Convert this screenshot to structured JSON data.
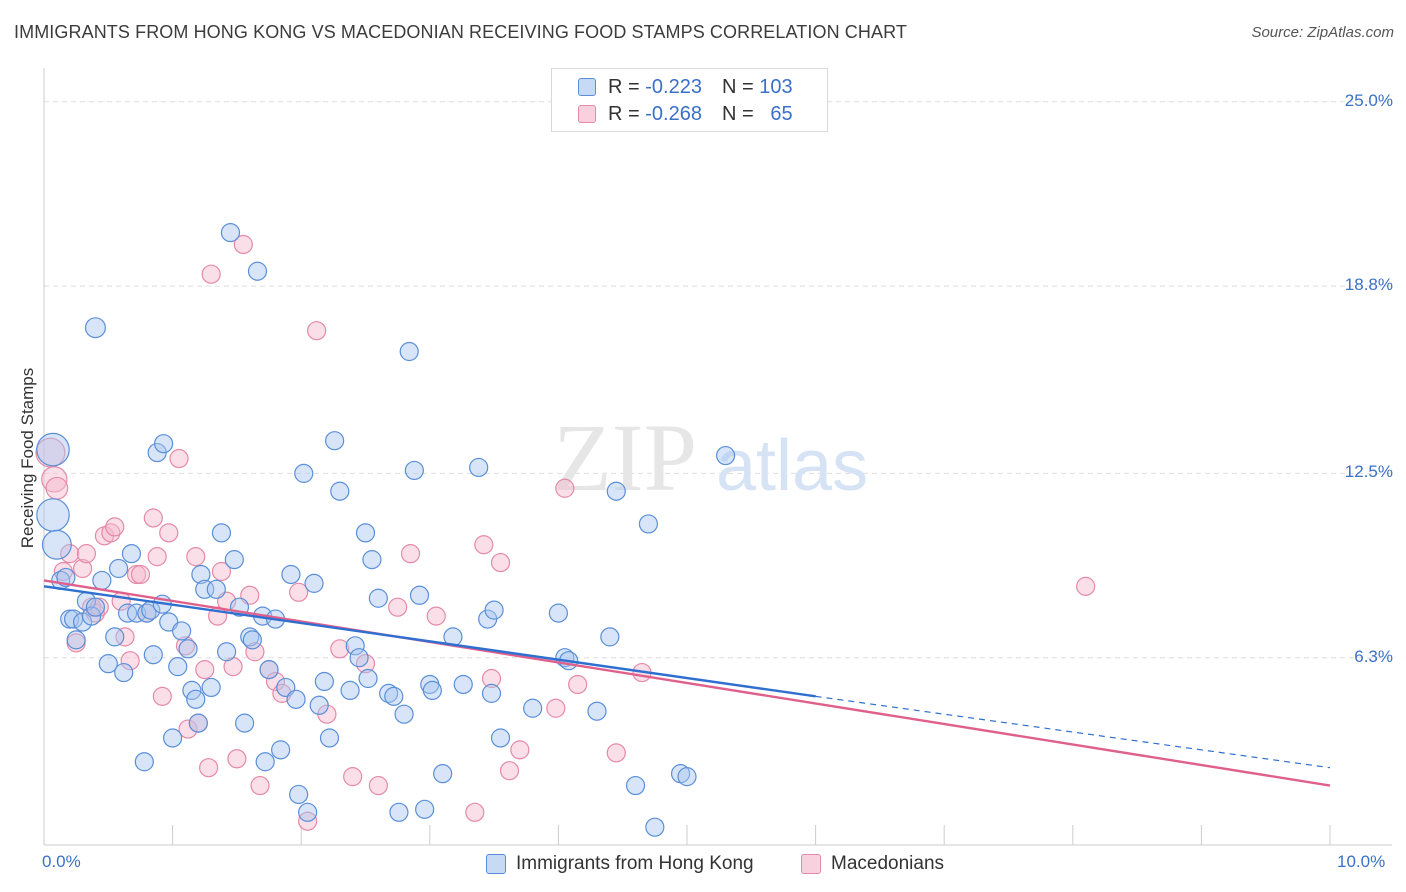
{
  "title": "IMMIGRANTS FROM HONG KONG VS MACEDONIAN RECEIVING FOOD STAMPS CORRELATION CHART",
  "source": "Source: ZipAtlas.com",
  "watermark": {
    "zip": "ZIP",
    "atlas": "atlas"
  },
  "legend": {
    "r_label": "R =",
    "n_label": "N =",
    "series1": {
      "r": "-0.223",
      "n": "103"
    },
    "series2": {
      "r": "-0.268",
      "n": "65"
    }
  },
  "bottom_legend": {
    "series1": "Immigrants from Hong Kong",
    "series2": "Macedonians"
  },
  "colors": {
    "series1_fill": "#a9c6ef",
    "series1_stroke": "#5a8fd8",
    "series1_line": "#2f6fd0",
    "series2_fill": "#f5b8cb",
    "series2_stroke": "#e58aa7",
    "series2_line": "#e0608c",
    "tick_label": "#3a70c8",
    "grid": "#dddddd"
  },
  "chart_data": {
    "type": "scatter",
    "title": "IMMIGRANTS FROM HONG KONG VS MACEDONIAN RECEIVING FOOD STAMPS CORRELATION CHART",
    "xlabel": "",
    "ylabel": "Receiving Food Stamps",
    "xlim": [
      0,
      10
    ],
    "ylim": [
      0,
      25.8
    ],
    "x_tick_labels": [
      {
        "value": 0,
        "label": "0.0%"
      },
      {
        "value": 10,
        "label": "10.0%"
      }
    ],
    "y_ticks": [
      {
        "value": 6.3,
        "label": "6.3%"
      },
      {
        "value": 12.5,
        "label": "12.5%"
      },
      {
        "value": 18.8,
        "label": "18.8%"
      },
      {
        "value": 25.0,
        "label": "25.0%"
      }
    ],
    "grid": true,
    "legend_position": "top-center",
    "series": [
      {
        "name": "Immigrants from Hong Kong",
        "r": -0.223,
        "n": 103,
        "trend": {
          "x0": 0,
          "y0": 8.7,
          "x1": 6.0,
          "y1": 5.0,
          "dashed_to_x": 10,
          "dashed_to_y": 2.6
        },
        "points": [
          [
            0.07,
            13.3,
            1.8
          ],
          [
            0.07,
            11.1,
            1.8
          ],
          [
            0.1,
            10.1,
            1.6
          ],
          [
            0.13,
            8.9,
            1
          ],
          [
            0.17,
            9.0,
            1
          ],
          [
            0.2,
            7.6,
            1
          ],
          [
            0.23,
            7.6,
            1
          ],
          [
            0.25,
            6.9,
            1
          ],
          [
            0.3,
            7.5,
            1
          ],
          [
            0.33,
            8.2,
            1
          ],
          [
            0.37,
            7.7,
            1
          ],
          [
            0.4,
            8.0,
            1
          ],
          [
            0.45,
            8.9,
            1
          ],
          [
            0.5,
            6.1,
            1
          ],
          [
            0.55,
            7.0,
            1
          ],
          [
            0.58,
            9.3,
            1
          ],
          [
            0.62,
            5.8,
            1
          ],
          [
            0.65,
            7.8,
            1
          ],
          [
            0.68,
            9.8,
            1
          ],
          [
            0.72,
            7.8,
            1
          ],
          [
            0.78,
            2.8,
            1
          ],
          [
            0.8,
            7.8,
            1
          ],
          [
            0.83,
            7.9,
            1
          ],
          [
            0.85,
            6.4,
            1
          ],
          [
            0.88,
            13.2,
            1
          ],
          [
            0.92,
            8.1,
            1
          ],
          [
            0.93,
            13.5,
            1
          ],
          [
            0.97,
            7.5,
            1
          ],
          [
            1.0,
            3.6,
            1
          ],
          [
            1.04,
            6.0,
            1
          ],
          [
            1.07,
            7.2,
            1
          ],
          [
            1.12,
            6.6,
            1
          ],
          [
            1.15,
            5.2,
            1
          ],
          [
            1.18,
            4.9,
            1
          ],
          [
            1.2,
            4.1,
            1
          ],
          [
            1.22,
            9.1,
            1
          ],
          [
            1.25,
            8.6,
            1
          ],
          [
            1.3,
            5.3,
            1
          ],
          [
            1.34,
            8.6,
            1
          ],
          [
            1.38,
            10.5,
            1
          ],
          [
            1.42,
            6.5,
            1
          ],
          [
            1.45,
            20.6,
            1
          ],
          [
            1.48,
            9.6,
            1
          ],
          [
            1.52,
            8.0,
            1
          ],
          [
            1.56,
            4.1,
            1
          ],
          [
            1.6,
            7.0,
            1
          ],
          [
            1.62,
            6.9,
            1
          ],
          [
            1.66,
            19.3,
            1
          ],
          [
            1.7,
            7.7,
            1
          ],
          [
            1.72,
            2.8,
            1
          ],
          [
            1.75,
            5.9,
            1
          ],
          [
            1.8,
            7.6,
            1
          ],
          [
            1.84,
            3.2,
            1
          ],
          [
            1.88,
            5.3,
            1
          ],
          [
            1.92,
            9.1,
            1
          ],
          [
            1.96,
            4.9,
            1
          ],
          [
            1.98,
            1.7,
            1
          ],
          [
            2.02,
            12.5,
            1
          ],
          [
            2.05,
            1.1,
            1
          ],
          [
            2.1,
            8.8,
            1
          ],
          [
            2.14,
            4.7,
            1
          ],
          [
            2.18,
            5.5,
            1
          ],
          [
            2.22,
            3.6,
            1
          ],
          [
            2.26,
            13.6,
            1
          ],
          [
            2.3,
            11.9,
            1
          ],
          [
            2.38,
            5.2,
            1
          ],
          [
            2.42,
            6.7,
            1
          ],
          [
            2.45,
            6.3,
            1
          ],
          [
            2.5,
            10.5,
            1
          ],
          [
            2.52,
            5.6,
            1
          ],
          [
            2.55,
            9.6,
            1
          ],
          [
            2.6,
            8.3,
            1
          ],
          [
            2.68,
            5.1,
            1
          ],
          [
            2.72,
            5.0,
            1
          ],
          [
            2.76,
            1.1,
            1
          ],
          [
            2.8,
            4.4,
            1
          ],
          [
            2.84,
            16.6,
            1
          ],
          [
            2.88,
            12.6,
            1
          ],
          [
            2.92,
            8.4,
            1
          ],
          [
            2.96,
            1.2,
            1
          ],
          [
            3.0,
            5.4,
            1
          ],
          [
            3.02,
            5.2,
            1
          ],
          [
            3.1,
            2.4,
            1
          ],
          [
            3.18,
            7.0,
            1
          ],
          [
            3.26,
            5.4,
            1
          ],
          [
            3.38,
            12.7,
            1
          ],
          [
            3.45,
            7.6,
            1
          ],
          [
            3.48,
            5.1,
            1
          ],
          [
            3.5,
            7.9,
            1
          ],
          [
            3.55,
            3.6,
            1
          ],
          [
            3.8,
            4.6,
            1
          ],
          [
            4.0,
            7.8,
            1
          ],
          [
            4.05,
            6.3,
            1
          ],
          [
            4.08,
            6.2,
            1
          ],
          [
            4.3,
            4.5,
            1
          ],
          [
            4.4,
            7.0,
            1
          ],
          [
            4.45,
            11.9,
            1
          ],
          [
            4.6,
            2.0,
            1
          ],
          [
            4.7,
            10.8,
            1
          ],
          [
            4.75,
            0.6,
            1
          ],
          [
            4.95,
            2.4,
            1
          ],
          [
            5.0,
            2.3,
            1
          ],
          [
            5.3,
            13.1,
            1
          ],
          [
            0.4,
            17.4,
            1.1
          ]
        ]
      },
      {
        "name": "Macedonians",
        "r": -0.268,
        "n": 65,
        "trend": {
          "x0": 0,
          "y0": 8.9,
          "x1": 10,
          "y1": 2.0
        },
        "points": [
          [
            0.05,
            13.2,
            1.6
          ],
          [
            0.08,
            12.3,
            1.4
          ],
          [
            0.1,
            12.0,
            1.2
          ],
          [
            0.15,
            9.2,
            1
          ],
          [
            0.2,
            9.8,
            1
          ],
          [
            0.25,
            6.8,
            1
          ],
          [
            0.3,
            9.3,
            1
          ],
          [
            0.33,
            9.8,
            1
          ],
          [
            0.37,
            8.0,
            1
          ],
          [
            0.4,
            7.8,
            1
          ],
          [
            0.43,
            8.0,
            1
          ],
          [
            0.47,
            10.4,
            1
          ],
          [
            0.52,
            10.5,
            1
          ],
          [
            0.55,
            10.7,
            1
          ],
          [
            0.6,
            8.2,
            1
          ],
          [
            0.63,
            7.0,
            1
          ],
          [
            0.67,
            6.2,
            1
          ],
          [
            0.72,
            9.1,
            1
          ],
          [
            0.75,
            9.1,
            1
          ],
          [
            0.8,
            7.8,
            1
          ],
          [
            0.85,
            11.0,
            1
          ],
          [
            0.88,
            9.7,
            1
          ],
          [
            0.92,
            5.0,
            1
          ],
          [
            0.97,
            10.5,
            1
          ],
          [
            1.05,
            13.0,
            1
          ],
          [
            1.1,
            6.7,
            1
          ],
          [
            1.12,
            3.9,
            1
          ],
          [
            1.18,
            9.7,
            1
          ],
          [
            1.2,
            4.1,
            1
          ],
          [
            1.25,
            5.9,
            1
          ],
          [
            1.28,
            2.6,
            1
          ],
          [
            1.3,
            19.2,
            1
          ],
          [
            1.35,
            7.7,
            1
          ],
          [
            1.38,
            9.2,
            1
          ],
          [
            1.42,
            8.2,
            1
          ],
          [
            1.47,
            6.0,
            1
          ],
          [
            1.5,
            2.9,
            1
          ],
          [
            1.55,
            20.2,
            1
          ],
          [
            1.6,
            8.4,
            1
          ],
          [
            1.64,
            6.5,
            1
          ],
          [
            1.68,
            2.0,
            1
          ],
          [
            1.75,
            5.9,
            1
          ],
          [
            1.8,
            5.5,
            1
          ],
          [
            1.85,
            5.1,
            1
          ],
          [
            1.98,
            8.5,
            1
          ],
          [
            2.05,
            0.8,
            1
          ],
          [
            2.12,
            17.3,
            1
          ],
          [
            2.2,
            4.4,
            1
          ],
          [
            2.3,
            6.6,
            1
          ],
          [
            2.4,
            2.3,
            1
          ],
          [
            2.5,
            6.1,
            1
          ],
          [
            2.6,
            2.0,
            1
          ],
          [
            2.75,
            8.0,
            1
          ],
          [
            2.85,
            9.8,
            1
          ],
          [
            3.05,
            7.7,
            1
          ],
          [
            3.35,
            1.1,
            1
          ],
          [
            3.42,
            10.1,
            1
          ],
          [
            3.48,
            5.6,
            1
          ],
          [
            3.55,
            9.5,
            1
          ],
          [
            3.62,
            2.5,
            1
          ],
          [
            3.7,
            3.2,
            1
          ],
          [
            3.98,
            4.6,
            1
          ],
          [
            4.05,
            12.0,
            1
          ],
          [
            4.15,
            5.4,
            1
          ],
          [
            4.45,
            3.1,
            1
          ],
          [
            4.65,
            5.8,
            1
          ],
          [
            8.1,
            8.7,
            1
          ]
        ]
      }
    ]
  }
}
